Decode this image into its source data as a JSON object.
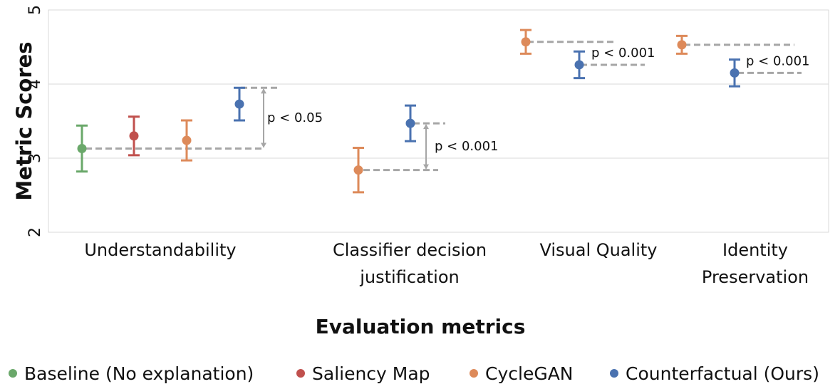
{
  "chart_data": {
    "type": "errorbar",
    "x_label": "Evaluation metrics",
    "y_label": "Metric Scores",
    "categories": [
      "Understandability",
      "Classifier decision justification",
      "Visual Quality",
      "Identity Preservation"
    ],
    "series": [
      {
        "name": "Baseline (No explanation)",
        "color": "#6aa86a",
        "values": [
          3.13,
          null,
          null,
          null
        ],
        "errors": [
          0.31,
          null,
          null,
          null
        ]
      },
      {
        "name": "Saliency Map",
        "color": "#c0504d",
        "values": [
          3.3,
          null,
          null,
          null
        ],
        "errors": [
          0.26,
          null,
          null,
          null
        ]
      },
      {
        "name": "CycleGAN",
        "color": "#dd8a5a",
        "values": [
          3.24,
          2.84,
          4.57,
          4.53
        ],
        "errors": [
          0.27,
          0.3,
          0.16,
          0.12
        ]
      },
      {
        "name": "Counterfactual (Ours)",
        "color": "#4a72b0",
        "values": [
          3.73,
          3.47,
          4.26,
          4.15
        ],
        "errors": [
          0.22,
          0.24,
          0.18,
          0.18
        ]
      }
    ],
    "annotations": [
      "p < 0.05",
      "p < 0.001",
      "p < 0.001",
      "p < 0.001"
    ],
    "ylim": [
      2,
      5
    ],
    "yticks": [
      2,
      3,
      4,
      5
    ],
    "grid": true,
    "legend": "bottom"
  }
}
